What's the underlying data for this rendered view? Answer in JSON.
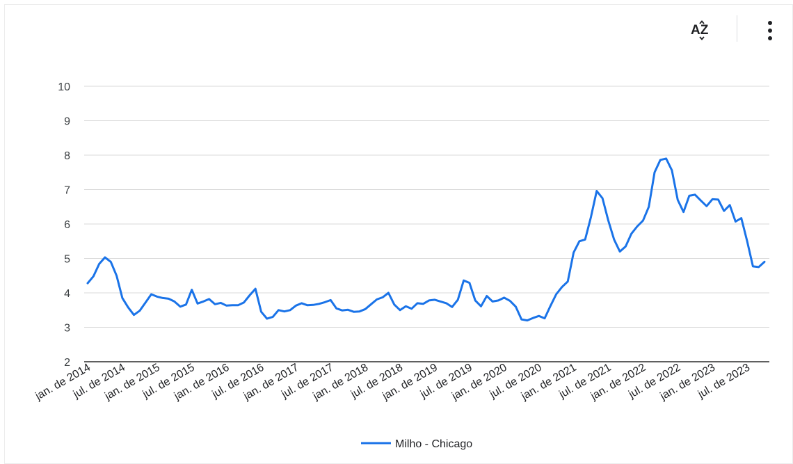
{
  "toolbar": {
    "sort_icon": "sort-az-icon",
    "sort_label": "AZ",
    "more_icon": "more-vert-icon"
  },
  "colors": {
    "series": "#1a73e8",
    "grid": "#d9d9d9",
    "axis": "#000000"
  },
  "chart_data": {
    "type": "line",
    "title": "",
    "xlabel": "",
    "ylabel": "",
    "ylim": [
      2,
      10
    ],
    "yticks": [
      2,
      3,
      4,
      5,
      6,
      7,
      8,
      9,
      10
    ],
    "grid": true,
    "legend_position": "bottom",
    "x_tick_labels": [
      "jan. de 2014",
      "jul. de 2014",
      "jan. de 2015",
      "jul. de 2015",
      "jan. de 2016",
      "jul. de 2016",
      "jan. de 2017",
      "jul. de 2017",
      "jan. de 2018",
      "jul. de 2018",
      "jan. de 2019",
      "jul. de 2019",
      "jan. de 2020",
      "jul. de 2020",
      "jan. de 2021",
      "jul. de 2021",
      "jan. de 2022",
      "jul. de 2022",
      "jan. de 2023",
      "jul. de 2023"
    ],
    "x_start": "2014-01",
    "x_end": "2023-12",
    "series": [
      {
        "name": "Milho - Chicago",
        "values": [
          4.28,
          4.48,
          4.84,
          5.03,
          4.9,
          4.5,
          3.85,
          3.58,
          3.36,
          3.48,
          3.72,
          3.96,
          3.89,
          3.85,
          3.83,
          3.75,
          3.6,
          3.66,
          4.09,
          3.69,
          3.75,
          3.82,
          3.67,
          3.71,
          3.63,
          3.64,
          3.64,
          3.72,
          3.93,
          4.12,
          3.45,
          3.25,
          3.3,
          3.5,
          3.46,
          3.5,
          3.63,
          3.7,
          3.64,
          3.65,
          3.68,
          3.73,
          3.79,
          3.55,
          3.49,
          3.51,
          3.45,
          3.46,
          3.53,
          3.67,
          3.81,
          3.87,
          4.0,
          3.66,
          3.5,
          3.61,
          3.54,
          3.7,
          3.68,
          3.78,
          3.8,
          3.75,
          3.7,
          3.59,
          3.8,
          4.36,
          4.29,
          3.78,
          3.61,
          3.91,
          3.75,
          3.78,
          3.86,
          3.77,
          3.6,
          3.23,
          3.2,
          3.27,
          3.33,
          3.26,
          3.62,
          3.96,
          4.17,
          4.33,
          5.17,
          5.5,
          5.55,
          6.2,
          6.96,
          6.75,
          6.1,
          5.55,
          5.2,
          5.35,
          5.72,
          5.93,
          6.1,
          6.5,
          7.5,
          7.86,
          7.9,
          7.56,
          6.7,
          6.35,
          6.82,
          6.85,
          6.68,
          6.52,
          6.72,
          6.71,
          6.38,
          6.55,
          6.07,
          6.17,
          5.5,
          4.77,
          4.75,
          4.9
        ]
      }
    ]
  }
}
